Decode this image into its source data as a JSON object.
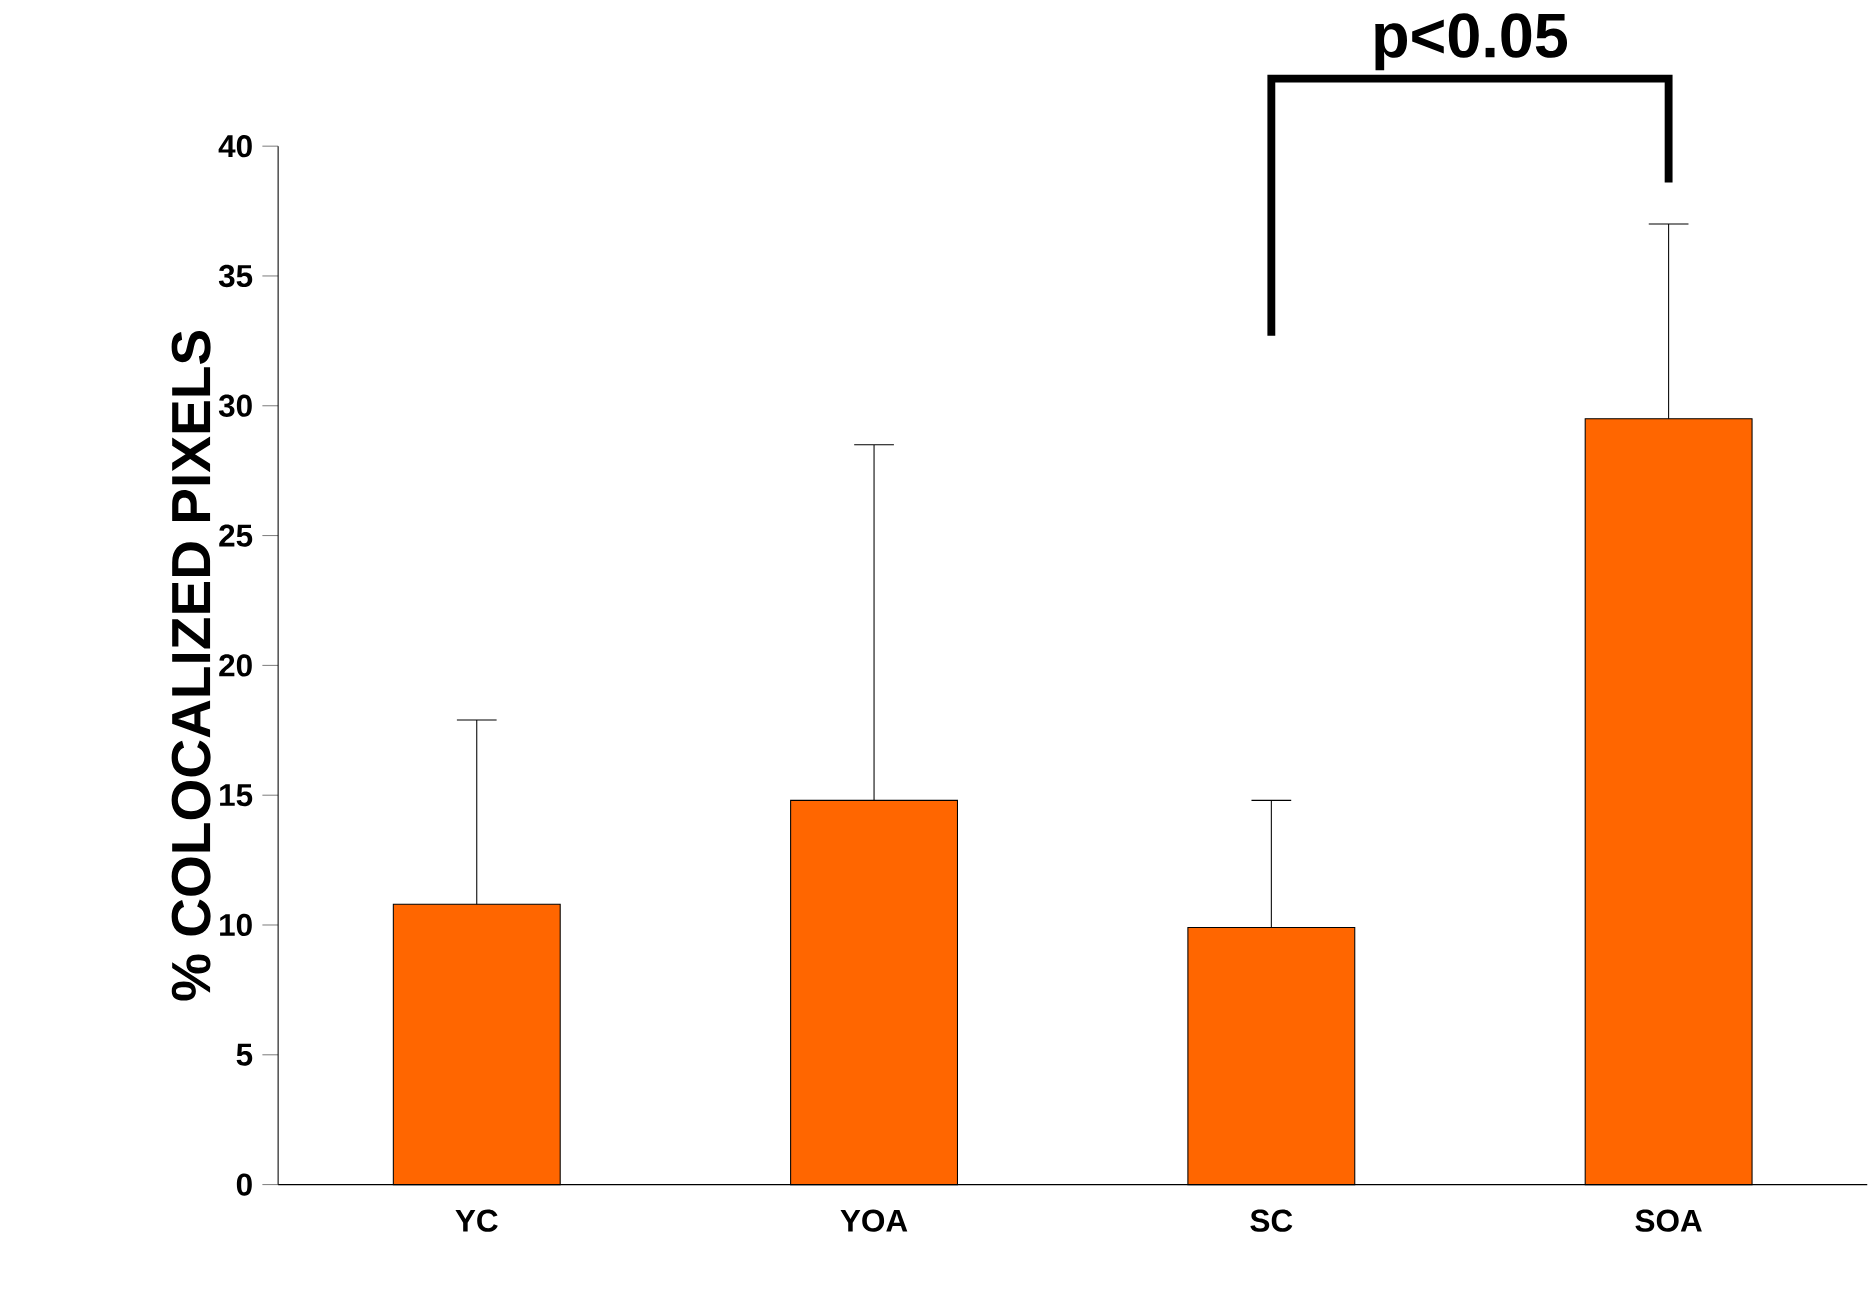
{
  "chart_data": {
    "type": "bar",
    "ylabel": "% COLOCALIZED PIXELS",
    "categories": [
      "YC",
      "YOA",
      "SC",
      "SOA"
    ],
    "values": [
      10.8,
      14.8,
      9.9,
      29.5
    ],
    "errors": [
      [
        10.8,
        17.9
      ],
      [
        14.8,
        28.5
      ],
      [
        9.9,
        14.8
      ],
      [
        29.5,
        37.0
      ]
    ],
    "color": "#ff6600",
    "ylim": [
      0,
      40
    ],
    "yticks": [
      0,
      5,
      10,
      15,
      20,
      25,
      30,
      35,
      40
    ],
    "grid": false,
    "annotations": [
      "p<0.05"
    ]
  }
}
